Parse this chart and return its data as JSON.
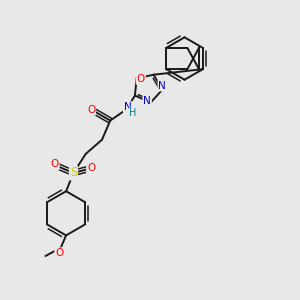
{
  "bg_color": "#e8e8e8",
  "bond_color": "#1a1a1a",
  "atom_colors": {
    "N": "#0000cc",
    "O": "#ff0000",
    "S": "#cccc00",
    "H": "#008080",
    "C": "#000000"
  },
  "lw": 1.4,
  "lw_double": 1.1
}
